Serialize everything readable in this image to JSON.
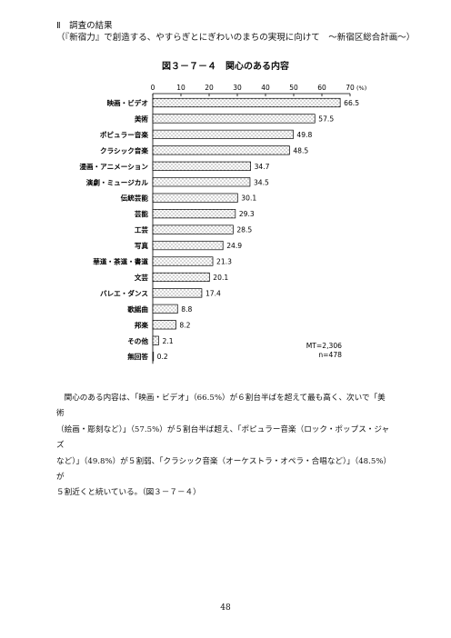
{
  "page": {
    "section_heading": "Ⅱ　調査の結果",
    "section_subheading": "（『新宿力』で創造する、やすらぎとにぎわいのまちの実現に向けて　～新宿区総合計画～）",
    "body_text": "　関心のある内容は、「映画・ビデオ」（66.5%）が６割台半ばを超えて最も高く、次いで「美術\n（絵画・彫刻など）」（57.5%）が５割台半ば超え、「ポピュラー音楽（ロック・ポップス・ジャズ\nなど）」（49.8%）が５割弱、「クラシック音楽（オーケストラ・オペラ・合唱など）」（48.5%）が\n５割近くと続いている。（図３－７－４）",
    "page_number": "48"
  },
  "chart_data": {
    "type": "bar",
    "orientation": "horizontal",
    "title": "図３－７－４　関心のある内容",
    "categories": [
      "映画・ビデオ",
      "美術",
      "ポピュラー音楽",
      "クラシック音楽",
      "漫画・アニメーション",
      "演劇・ミュージカル",
      "伝統芸能",
      "芸能",
      "工芸",
      "写真",
      "華道・茶道・書道",
      "文芸",
      "バレエ・ダンス",
      "歌謡曲",
      "邦楽",
      "その他",
      "無回答"
    ],
    "values": [
      66.5,
      57.5,
      49.8,
      48.5,
      34.7,
      34.5,
      30.1,
      29.3,
      28.5,
      24.9,
      21.3,
      20.1,
      17.4,
      8.8,
      8.2,
      2.1,
      0.2
    ],
    "value_labels": [
      "66.5",
      "57.5",
      "49.8",
      "48.5",
      "34.7",
      "34.5",
      "30.1",
      "29.3",
      "28.5",
      "24.9",
      "21.3",
      "20.1",
      "17.4",
      "8.8",
      "8.2",
      "2.1",
      "0.2"
    ],
    "xlim": [
      0,
      70
    ],
    "xticks": [
      "0",
      "10",
      "20",
      "30",
      "40",
      "50",
      "60",
      "70"
    ],
    "unit_label": "(%)",
    "annotation": [
      "MT=2,306",
      "n=478"
    ],
    "bar_pattern": "dotted",
    "grid": false
  }
}
